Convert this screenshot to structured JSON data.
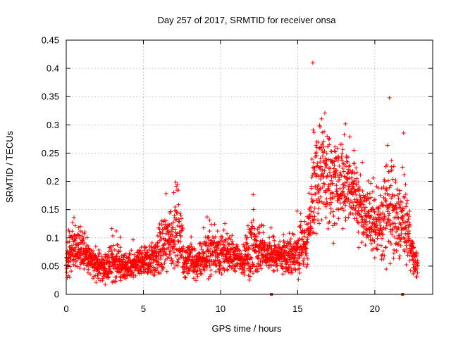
{
  "chart_data": {
    "type": "scatter",
    "title": "Day 257 of 2017, SRMTID for receiver onsa",
    "xlabel": "GPS time / hours",
    "ylabel": "SRMTID / TECUs",
    "xlim": [
      0,
      23.75
    ],
    "ylim": [
      0,
      0.45
    ],
    "xticks": [
      0,
      5,
      10,
      15,
      20
    ],
    "xtick_labels": [
      "0",
      "5",
      "10",
      "15",
      "20"
    ],
    "yticks": [
      0,
      0.05,
      0.1,
      0.15,
      0.2,
      0.25,
      0.3,
      0.35,
      0.4,
      0.45
    ],
    "ytick_labels": [
      "0",
      "0.05",
      "0.1",
      "0.15",
      "0.2",
      "0.25",
      "0.3",
      "0.35",
      "0.4",
      "0.45"
    ],
    "grid": true,
    "marker": "+",
    "color": "#ff0000",
    "samples_per_hour": 120,
    "series": [
      {
        "name": "SRMTID",
        "envelope": [
          {
            "hour": 0.0,
            "level": 0.06,
            "spread": 0.05
          },
          {
            "hour": 0.5,
            "level": 0.08,
            "spread": 0.07
          },
          {
            "hour": 1.0,
            "level": 0.08,
            "spread": 0.06
          },
          {
            "hour": 1.5,
            "level": 0.06,
            "spread": 0.04
          },
          {
            "hour": 2.5,
            "level": 0.045,
            "spread": 0.035
          },
          {
            "hour": 3.0,
            "level": 0.06,
            "spread": 0.06
          },
          {
            "hour": 3.5,
            "level": 0.05,
            "spread": 0.04
          },
          {
            "hour": 4.5,
            "level": 0.05,
            "spread": 0.035
          },
          {
            "hour": 5.5,
            "level": 0.06,
            "spread": 0.045
          },
          {
            "hour": 6.5,
            "level": 0.09,
            "spread": 0.09
          },
          {
            "hour": 7.2,
            "level": 0.12,
            "spread": 0.13
          },
          {
            "hour": 7.6,
            "level": 0.06,
            "spread": 0.05
          },
          {
            "hour": 8.5,
            "level": 0.055,
            "spread": 0.045
          },
          {
            "hour": 9.5,
            "level": 0.08,
            "spread": 0.07
          },
          {
            "hour": 10.5,
            "level": 0.07,
            "spread": 0.05
          },
          {
            "hour": 11.5,
            "level": 0.06,
            "spread": 0.04
          },
          {
            "hour": 12.0,
            "level": 0.08,
            "spread": 0.11
          },
          {
            "hour": 13.0,
            "level": 0.07,
            "spread": 0.04
          },
          {
            "hour": 14.0,
            "level": 0.065,
            "spread": 0.04
          },
          {
            "hour": 15.0,
            "level": 0.07,
            "spread": 0.07
          },
          {
            "hour": 15.6,
            "level": 0.09,
            "spread": 0.05
          },
          {
            "hour": 16.0,
            "level": 0.17,
            "spread": 0.12
          },
          {
            "hour": 16.5,
            "level": 0.22,
            "spread": 0.16
          },
          {
            "hour": 17.0,
            "level": 0.21,
            "spread": 0.14
          },
          {
            "hour": 17.5,
            "level": 0.19,
            "spread": 0.12
          },
          {
            "hour": 18.0,
            "level": 0.2,
            "spread": 0.12
          },
          {
            "hour": 18.5,
            "level": 0.19,
            "spread": 0.1
          },
          {
            "hour": 19.0,
            "level": 0.15,
            "spread": 0.09
          },
          {
            "hour": 19.5,
            "level": 0.14,
            "spread": 0.08
          },
          {
            "hour": 20.0,
            "level": 0.12,
            "spread": 0.08
          },
          {
            "hour": 20.5,
            "level": 0.13,
            "spread": 0.1
          },
          {
            "hour": 21.0,
            "level": 0.15,
            "spread": 0.16
          },
          {
            "hour": 21.5,
            "level": 0.12,
            "spread": 0.1
          },
          {
            "hour": 22.0,
            "level": 0.13,
            "spread": 0.12
          },
          {
            "hour": 22.5,
            "level": 0.06,
            "spread": 0.04
          },
          {
            "hour": 22.8,
            "level": 0.05,
            "spread": 0.035
          }
        ],
        "coverage_hours": [
          0.0,
          22.8
        ]
      }
    ],
    "highlights": [
      {
        "x": 20.95,
        "y": 0.348
      },
      {
        "x": 15.98,
        "y": 0.41
      }
    ],
    "axis_markers": [
      {
        "x": 13.3,
        "label": ""
      },
      {
        "x": 21.8,
        "label": ""
      }
    ]
  }
}
